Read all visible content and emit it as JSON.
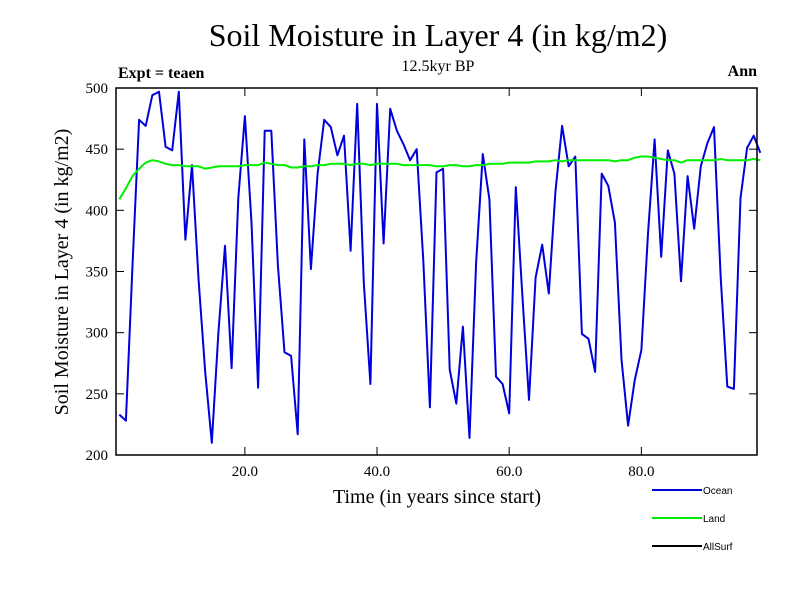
{
  "chart_data": {
    "type": "line",
    "title": "Soil Moisture in Layer 4 (in kg/m2)",
    "subtitle": "12.5kyr BP",
    "left_label": "Expt = teaen",
    "right_label": "Ann",
    "xlabel": "Time (in years since start)",
    "ylabel": "Soil Moisture in Layer 4 (in kg/m2)",
    "xlim": [
      0.5,
      97.5
    ],
    "ylim": [
      200,
      500
    ],
    "x_ticks": [
      20,
      40,
      60,
      80
    ],
    "x_tick_labels": [
      "20.0",
      "40.0",
      "60.0",
      "80.0"
    ],
    "y_ticks": [
      200,
      250,
      300,
      350,
      400,
      450,
      500
    ],
    "y_tick_labels": [
      "200",
      "250",
      "300",
      "350",
      "400",
      "450",
      "500"
    ],
    "x": [
      1,
      2,
      3,
      4,
      5,
      6,
      7,
      8,
      9,
      10,
      11,
      12,
      13,
      14,
      15,
      16,
      17,
      18,
      19,
      20,
      21,
      22,
      23,
      24,
      25,
      26,
      27,
      28,
      29,
      30,
      31,
      32,
      33,
      34,
      35,
      36,
      37,
      38,
      39,
      40,
      41,
      42,
      43,
      44,
      45,
      46,
      47,
      48,
      49,
      50,
      51,
      52,
      53,
      54,
      55,
      56,
      57,
      58,
      59,
      60,
      61,
      62,
      63,
      64,
      65,
      66,
      67,
      68,
      69,
      70,
      71,
      72,
      73,
      74,
      75,
      76,
      77,
      78,
      79,
      80,
      81,
      82,
      83,
      84,
      85,
      86,
      87,
      88,
      89,
      90,
      91,
      92,
      93,
      94,
      95,
      96,
      97,
      98
    ],
    "series": [
      {
        "name": "Ocean",
        "color": "#0000dd",
        "values": [
          233,
          228,
          355,
          474,
          469,
          494,
          497,
          452,
          449,
          497,
          376,
          437,
          343,
          268,
          210,
          300,
          371,
          271,
          410,
          477,
          390,
          255,
          465,
          465,
          355,
          284,
          281,
          217,
          458,
          352,
          430,
          474,
          468,
          445,
          461,
          367,
          487,
          341,
          258,
          487,
          373,
          483,
          465,
          454,
          441,
          450,
          359,
          239,
          431,
          434,
          270,
          242,
          305,
          214,
          357,
          446,
          409,
          264,
          258,
          234,
          419,
          330,
          245,
          345,
          372,
          332,
          415,
          469,
          436,
          444,
          299,
          295,
          268,
          430,
          420,
          390,
          278,
          224,
          261,
          286,
          381,
          458,
          362,
          449,
          430,
          342,
          428,
          385,
          436,
          455,
          468,
          345,
          256,
          254,
          410,
          451,
          461,
          447
        ],
        "line_width": 2
      },
      {
        "name": "Land",
        "color": "#00ee00",
        "values": [
          409,
          418,
          428,
          434,
          439,
          441,
          440,
          438,
          437,
          437,
          436,
          436,
          436,
          434,
          435,
          436,
          436,
          436,
          436,
          437,
          437,
          437,
          439,
          438,
          437,
          437,
          435,
          435,
          436,
          436,
          437,
          437,
          438,
          438,
          438,
          437,
          438,
          438,
          437,
          438,
          438,
          438,
          438,
          437,
          437,
          437,
          437,
          437,
          436,
          436,
          437,
          437,
          436,
          436,
          437,
          437,
          438,
          438,
          438,
          439,
          439,
          439,
          439,
          440,
          440,
          440,
          441,
          440,
          441,
          441,
          441,
          441,
          441,
          441,
          441,
          440,
          441,
          441,
          443,
          444,
          444,
          443,
          442,
          441,
          441,
          439,
          441,
          441,
          441,
          441,
          441,
          442,
          441,
          441,
          441,
          441,
          442,
          441
        ],
        "line_width": 2
      }
    ],
    "legend": [
      {
        "label": "Ocean",
        "color": "#0000dd"
      },
      {
        "label": "Land",
        "color": "#00ee00"
      },
      {
        "label": "AllSurf",
        "color": "#000000"
      }
    ],
    "legend_position": "bottom-right"
  }
}
